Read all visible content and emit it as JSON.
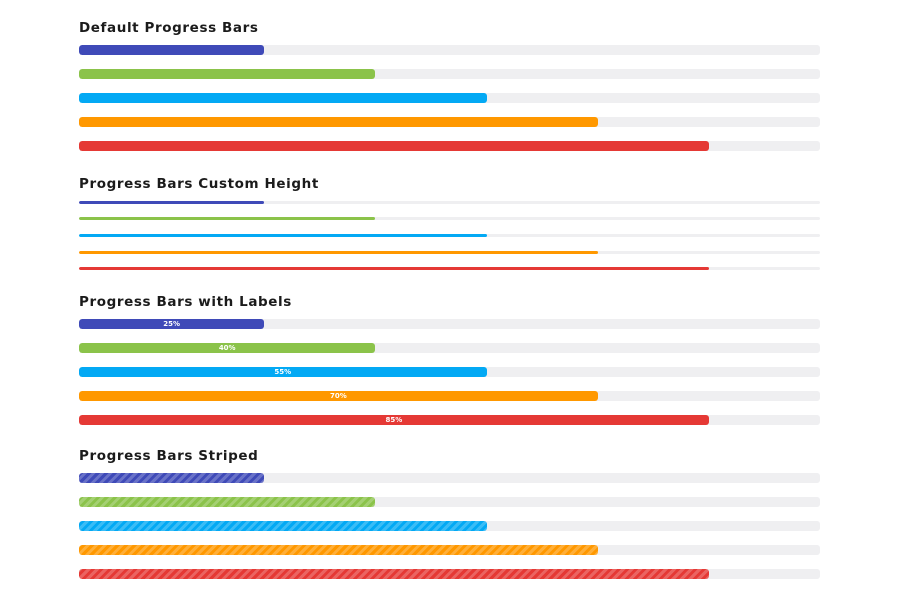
{
  "colors": {
    "track": "#efeff1",
    "indigo": "#3f4ab8",
    "green": "#8bc34a",
    "blue": "#03a9f4",
    "orange": "#ff9800",
    "red": "#e53935"
  },
  "sections": {
    "default": {
      "title": "Default Progress Bars",
      "bars": [
        {
          "value": 25,
          "color": "#3f4ab8"
        },
        {
          "value": 40,
          "color": "#8bc34a"
        },
        {
          "value": 55,
          "color": "#03a9f4"
        },
        {
          "value": 70,
          "color": "#ff9800"
        },
        {
          "value": 85,
          "color": "#e53935"
        }
      ]
    },
    "custom_height": {
      "title": "Progress Bars Custom Height",
      "bars": [
        {
          "value": 25,
          "color": "#3f4ab8"
        },
        {
          "value": 40,
          "color": "#8bc34a"
        },
        {
          "value": 55,
          "color": "#03a9f4"
        },
        {
          "value": 70,
          "color": "#ff9800"
        },
        {
          "value": 85,
          "color": "#e53935"
        }
      ]
    },
    "labels": {
      "title": "Progress Bars with Labels",
      "bars": [
        {
          "value": 25,
          "color": "#3f4ab8",
          "label": "25%"
        },
        {
          "value": 40,
          "color": "#8bc34a",
          "label": "40%"
        },
        {
          "value": 55,
          "color": "#03a9f4",
          "label": "55%"
        },
        {
          "value": 70,
          "color": "#ff9800",
          "label": "70%"
        },
        {
          "value": 85,
          "color": "#e53935",
          "label": "85%"
        }
      ]
    },
    "striped": {
      "title": "Progress Bars Striped",
      "bars": [
        {
          "value": 25,
          "color": "#3f4ab8"
        },
        {
          "value": 40,
          "color": "#8bc34a"
        },
        {
          "value": 55,
          "color": "#03a9f4"
        },
        {
          "value": 70,
          "color": "#ff9800"
        },
        {
          "value": 85,
          "color": "#e53935"
        }
      ]
    }
  }
}
